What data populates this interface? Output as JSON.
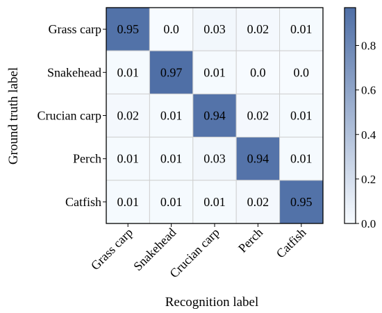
{
  "chart_data": {
    "type": "heatmap",
    "xlabel": "Recognition label",
    "ylabel": "Ground truth label",
    "x_categories": [
      "Grass carp",
      "Snakehead",
      "Crucian carp",
      "Perch",
      "Catfish"
    ],
    "y_categories": [
      "Grass carp",
      "Snakehead",
      "Crucian carp",
      "Perch",
      "Catfish"
    ],
    "values": [
      [
        0.95,
        0.0,
        0.03,
        0.02,
        0.01
      ],
      [
        0.01,
        0.97,
        0.01,
        0.0,
        0.0
      ],
      [
        0.02,
        0.01,
        0.94,
        0.02,
        0.01
      ],
      [
        0.01,
        0.01,
        0.03,
        0.94,
        0.01
      ],
      [
        0.01,
        0.01,
        0.01,
        0.02,
        0.95
      ]
    ],
    "value_labels": [
      [
        "0.95",
        "0.0",
        "0.03",
        "0.02",
        "0.01"
      ],
      [
        "0.01",
        "0.97",
        "0.01",
        "0.0",
        "0.0"
      ],
      [
        "0.02",
        "0.01",
        "0.94",
        "0.02",
        "0.01"
      ],
      [
        "0.01",
        "0.01",
        "0.03",
        "0.94",
        "0.01"
      ],
      [
        "0.01",
        "0.01",
        "0.01",
        "0.02",
        "0.95"
      ]
    ],
    "colorbar": {
      "min": 0.0,
      "max": 0.97,
      "ticks": [
        0.0,
        0.2,
        0.4,
        0.6,
        0.8
      ],
      "tick_labels": [
        "0.0",
        "0.2",
        "0.4",
        "0.6",
        "0.8"
      ],
      "color_low": "#f7fbff",
      "color_high": "#4f6fa6"
    },
    "grid": true
  }
}
